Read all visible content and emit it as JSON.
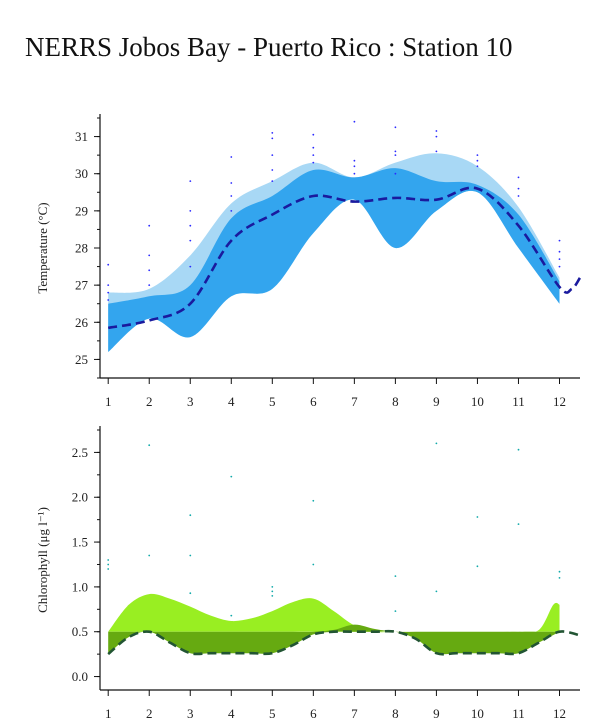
{
  "title": "NERRS Jobos Bay - Puerto Rico : Station 10",
  "chart_data": [
    {
      "type": "area",
      "ylabel": "Temperature (°C)",
      "xlabel": "",
      "x_ticks": [
        1,
        2,
        3,
        4,
        5,
        6,
        7,
        8,
        9,
        10,
        11,
        12
      ],
      "xlim": [
        0.8,
        12.5
      ],
      "ylim": [
        24.5,
        31.5
      ],
      "y_ticks": [
        25,
        26,
        27,
        28,
        29,
        30,
        31
      ],
      "colors": {
        "outer_band": "#a8d8f5",
        "inner_band": "#33a5ee",
        "median": "#1a1a9e",
        "points": "#2a2aff"
      },
      "series": [
        {
          "role": "outer_band",
          "x": [
            1,
            2,
            3,
            4,
            5,
            6,
            7,
            8,
            9,
            10,
            11,
            12
          ],
          "upper": [
            26.8,
            26.9,
            27.8,
            29.2,
            29.8,
            30.3,
            29.9,
            30.3,
            30.55,
            30.2,
            29.1,
            27.2
          ],
          "lower": [
            25.2,
            26.1,
            25.6,
            26.7,
            26.9,
            28.4,
            29.3,
            28.0,
            29.0,
            29.5,
            28.0,
            26.5
          ]
        },
        {
          "role": "inner_band",
          "x": [
            1,
            2,
            3,
            4,
            5,
            6,
            7,
            8,
            9,
            10,
            11,
            12
          ],
          "upper": [
            26.5,
            26.7,
            27.0,
            28.8,
            29.4,
            30.1,
            29.9,
            30.15,
            29.8,
            29.7,
            28.9,
            27.1
          ],
          "lower": [
            25.2,
            26.1,
            25.6,
            26.7,
            26.9,
            28.4,
            29.3,
            28.0,
            29.0,
            29.5,
            28.0,
            26.5
          ]
        },
        {
          "role": "median",
          "x": [
            1,
            2,
            3,
            4,
            5,
            6,
            7,
            8,
            9,
            10,
            11,
            12,
            12.3,
            12.5
          ],
          "y": [
            25.85,
            26.05,
            26.5,
            28.2,
            28.9,
            29.4,
            29.25,
            29.35,
            29.3,
            29.6,
            28.6,
            26.95,
            26.9,
            27.2
          ]
        },
        {
          "role": "points",
          "x": [
            1,
            1,
            1,
            1,
            2,
            2,
            2,
            2,
            3,
            3,
            3,
            3,
            3,
            4,
            4,
            4,
            4,
            5,
            5,
            5,
            5,
            5,
            6,
            6,
            6,
            6,
            7,
            7,
            7,
            7,
            8,
            8,
            8,
            8,
            9,
            9,
            9,
            10,
            10,
            10,
            11,
            11,
            11,
            12,
            12,
            12,
            12
          ],
          "y": [
            27.55,
            27.0,
            26.8,
            26.6,
            28.6,
            27.8,
            27.4,
            27.0,
            29.8,
            29.0,
            28.6,
            28.2,
            27.5,
            30.45,
            29.75,
            29.4,
            29.0,
            31.1,
            30.95,
            30.5,
            30.1,
            29.8,
            31.05,
            30.7,
            30.5,
            30.3,
            31.4,
            30.35,
            30.2,
            30.0,
            31.25,
            30.6,
            30.5,
            30.0,
            31.15,
            31.0,
            30.6,
            30.5,
            30.35,
            30.2,
            29.9,
            29.6,
            29.4,
            28.2,
            27.9,
            27.7,
            27.5
          ]
        }
      ]
    },
    {
      "type": "area",
      "ylabel": "Chlorophyll (μg l⁻¹)",
      "xlabel": "",
      "x_ticks": [
        1,
        2,
        3,
        4,
        5,
        6,
        7,
        8,
        9,
        10,
        11,
        12
      ],
      "xlim": [
        0.8,
        12.5
      ],
      "ylim": [
        -0.15,
        2.75
      ],
      "y_ticks": [
        0.0,
        0.5,
        1.0,
        1.5,
        2.0,
        2.5
      ],
      "y_tick_labels": [
        "0.0",
        "0.5",
        "1.0",
        "1.5",
        "2.0",
        "2.5"
      ],
      "colors": {
        "upper_band": "#99ee22",
        "lower_band": "#66aa11",
        "median": "#225533",
        "points": "#11aaaa"
      },
      "series": [
        {
          "role": "upper_band",
          "x": [
            1,
            1.5,
            2,
            2.5,
            3,
            3.5,
            4,
            4.5,
            5,
            5.5,
            6,
            6.5,
            7,
            7.5,
            8,
            8.5,
            9,
            9.5,
            10,
            10.5,
            11,
            11.5,
            11.85,
            12
          ],
          "upper": [
            0.5,
            0.8,
            0.92,
            0.87,
            0.78,
            0.68,
            0.62,
            0.65,
            0.73,
            0.83,
            0.87,
            0.73,
            0.57,
            0.5,
            0.5,
            0.5,
            0.5,
            0.5,
            0.5,
            0.5,
            0.5,
            0.52,
            0.8,
            0.8
          ],
          "lower": [
            0.5,
            0.5,
            0.5,
            0.5,
            0.5,
            0.5,
            0.5,
            0.5,
            0.5,
            0.5,
            0.5,
            0.5,
            0.5,
            0.5,
            0.5,
            0.5,
            0.5,
            0.5,
            0.5,
            0.5,
            0.5,
            0.5,
            0.5,
            0.5
          ]
        },
        {
          "role": "lower_band",
          "x": [
            1,
            1.5,
            2,
            2.5,
            3,
            3.5,
            4,
            4.5,
            5,
            5.5,
            6,
            6.5,
            7,
            7.5,
            8,
            8.5,
            9,
            9.5,
            10,
            10.5,
            11,
            11.5,
            12
          ],
          "upper": [
            0.5,
            0.5,
            0.5,
            0.5,
            0.5,
            0.5,
            0.5,
            0.5,
            0.5,
            0.5,
            0.5,
            0.52,
            0.58,
            0.53,
            0.5,
            0.5,
            0.5,
            0.5,
            0.5,
            0.5,
            0.5,
            0.5,
            0.5
          ],
          "lower": [
            0.25,
            0.44,
            0.5,
            0.38,
            0.26,
            0.26,
            0.26,
            0.26,
            0.26,
            0.35,
            0.47,
            0.5,
            0.5,
            0.5,
            0.5,
            0.42,
            0.26,
            0.26,
            0.26,
            0.26,
            0.26,
            0.38,
            0.5
          ]
        },
        {
          "role": "median",
          "x": [
            1,
            1.5,
            2,
            2.5,
            3,
            3.5,
            4,
            4.5,
            5,
            5.5,
            6,
            6.5,
            7,
            7.5,
            8,
            8.5,
            9,
            9.5,
            10,
            10.5,
            11,
            11.5,
            12,
            12.5
          ],
          "y": [
            0.25,
            0.44,
            0.5,
            0.38,
            0.26,
            0.26,
            0.26,
            0.26,
            0.26,
            0.35,
            0.47,
            0.5,
            0.5,
            0.5,
            0.5,
            0.42,
            0.26,
            0.26,
            0.26,
            0.26,
            0.26,
            0.38,
            0.5,
            0.46
          ]
        },
        {
          "role": "points",
          "x": [
            1,
            1,
            1,
            2,
            2,
            3,
            3,
            3,
            4,
            4,
            5,
            5,
            5,
            6,
            6,
            8,
            8,
            9,
            9,
            10,
            10,
            11,
            11,
            12,
            12
          ],
          "y": [
            1.3,
            1.25,
            1.2,
            2.58,
            1.35,
            1.8,
            1.35,
            0.93,
            2.23,
            0.68,
            1.0,
            0.95,
            0.9,
            1.96,
            1.25,
            1.12,
            0.73,
            2.6,
            0.95,
            1.78,
            1.23,
            2.53,
            1.7,
            1.17,
            1.1
          ]
        }
      ]
    }
  ]
}
